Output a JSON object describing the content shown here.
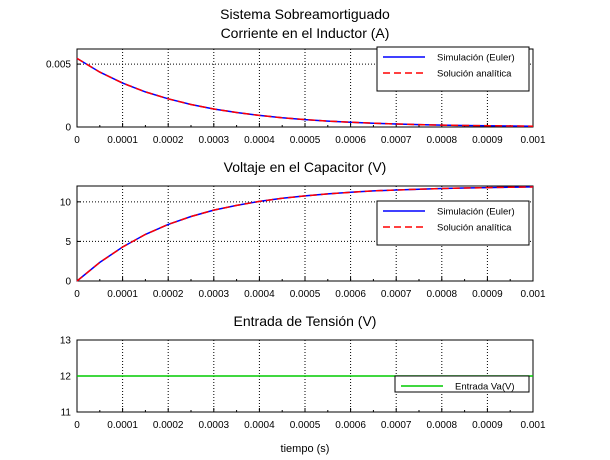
{
  "page": {
    "suptitle": "Sistema Sobreamortiguado",
    "xlabel": "tiempo (s)"
  },
  "chart_data": [
    {
      "type": "line",
      "title": "Corriente en el Inductor (A)",
      "xlim": [
        0,
        0.001
      ],
      "ylim": [
        0,
        0.0062
      ],
      "x_ticks": [
        "0",
        "0.0001",
        "0.0002",
        "0.0003",
        "0.0004",
        "0.0005",
        "0.0006",
        "0.0007",
        "0.0008",
        "0.0009",
        "0.001"
      ],
      "y_ticks": [
        {
          "value": 0,
          "label": "0"
        },
        {
          "value": 0.005,
          "label": "0.005"
        }
      ],
      "grid": true,
      "legend": "bottom-right",
      "x": [
        0,
        5e-05,
        0.0001,
        0.00015,
        0.0002,
        0.00025,
        0.0003,
        0.00035,
        0.0004,
        0.00045,
        0.0005,
        0.00055,
        0.0006,
        0.00065,
        0.0007,
        0.00075,
        0.0008,
        0.00085,
        0.0009,
        0.00095,
        0.001
      ],
      "series": [
        {
          "name": "Simulación (Euler)",
          "color": "#0000ff",
          "dash": "solid",
          "values": [
            0.00545,
            0.00436,
            0.00349,
            0.00279,
            0.00224,
            0.00179,
            0.00143,
            0.00115,
            0.00092,
            0.00073,
            0.00059,
            0.00047,
            0.00038,
            0.0003,
            0.00024,
            0.00019,
            0.00015,
            0.00012,
            0.0001,
            8e-05,
            6e-05
          ]
        },
        {
          "name": "Solución analítica",
          "color": "#ff0000",
          "dash": "dashed",
          "values": [
            0.00545,
            0.00436,
            0.00349,
            0.00279,
            0.00224,
            0.00179,
            0.00143,
            0.00115,
            0.00092,
            0.00073,
            0.00059,
            0.00047,
            0.00038,
            0.0003,
            0.00024,
            0.00019,
            0.00015,
            0.00012,
            0.0001,
            8e-05,
            6e-05
          ]
        }
      ]
    },
    {
      "type": "line",
      "title": "Voltaje en el Capacitor (V)",
      "xlim": [
        0,
        0.001
      ],
      "ylim": [
        0,
        12
      ],
      "x_ticks": [
        "0",
        "0.0001",
        "0.0002",
        "0.0003",
        "0.0004",
        "0.0005",
        "0.0006",
        "0.0007",
        "0.0008",
        "0.0009",
        "0.001"
      ],
      "y_ticks": [
        {
          "value": 0,
          "label": "0"
        },
        {
          "value": 5,
          "label": "5"
        },
        {
          "value": 10,
          "label": "10"
        }
      ],
      "grid": true,
      "legend": "bottom-right",
      "x": [
        0,
        5e-05,
        0.0001,
        0.00015,
        0.0002,
        0.00025,
        0.0003,
        0.00035,
        0.0004,
        0.00045,
        0.0005,
        0.00055,
        0.0006,
        0.00065,
        0.0007,
        0.00075,
        0.0008,
        0.00085,
        0.0009,
        0.00095,
        0.001
      ],
      "series": [
        {
          "name": "Simulación (Euler)",
          "color": "#0000ff",
          "dash": "solid",
          "values": [
            0,
            2.35,
            4.3,
            5.88,
            7.15,
            8.15,
            8.95,
            9.55,
            10.05,
            10.45,
            10.75,
            11.0,
            11.2,
            11.38,
            11.5,
            11.6,
            11.68,
            11.75,
            11.8,
            11.85,
            11.88
          ]
        },
        {
          "name": "Solución analítica",
          "color": "#ff0000",
          "dash": "dashed",
          "values": [
            0,
            2.35,
            4.3,
            5.88,
            7.15,
            8.15,
            8.95,
            9.55,
            10.05,
            10.45,
            10.75,
            11.0,
            11.2,
            11.38,
            11.5,
            11.6,
            11.68,
            11.75,
            11.8,
            11.85,
            11.88
          ]
        }
      ]
    },
    {
      "type": "line",
      "title": "Entrada de Tensión (V)",
      "xlim": [
        0,
        0.001
      ],
      "ylim": [
        11,
        13
      ],
      "x_ticks": [
        "0",
        "0.0001",
        "0.0002",
        "0.0003",
        "0.0004",
        "0.0005",
        "0.0006",
        "0.0007",
        "0.0008",
        "0.0009",
        "0.001"
      ],
      "y_ticks": [
        {
          "value": 11,
          "label": "11"
        },
        {
          "value": 12,
          "label": "12"
        },
        {
          "value": 13,
          "label": "13"
        }
      ],
      "grid": true,
      "legend": "bottom-right",
      "x": [
        0,
        0.001
      ],
      "series": [
        {
          "name": "Entrada Va(V)",
          "color": "#00cc00",
          "dash": "solid",
          "values": [
            12,
            12
          ]
        }
      ]
    }
  ]
}
